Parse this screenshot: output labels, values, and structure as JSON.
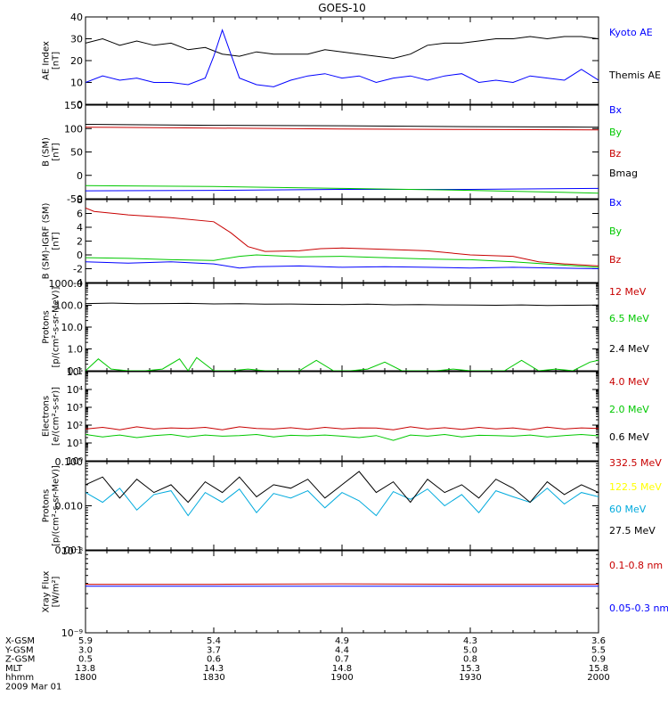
{
  "title": "GOES-10",
  "chart_data": [
    {
      "type": "line",
      "panel": "ae-index",
      "ylabel": "AE Index [nT]",
      "ylabel_lines": [
        "AE Index",
        "[nT]"
      ],
      "ylim": [
        0,
        40
      ],
      "yticks": [
        0,
        10,
        20,
        30,
        40
      ],
      "yscale": "linear",
      "xlim": [
        0,
        120
      ],
      "series": [
        {
          "name": "Kyoto AE",
          "color": "#000000",
          "x": [
            0,
            4,
            8,
            12,
            16,
            20,
            24,
            28,
            32,
            36,
            40,
            44,
            48,
            52,
            56,
            60,
            64,
            68,
            72,
            76,
            80,
            84,
            88,
            92,
            96,
            100,
            104,
            108,
            112,
            116,
            120
          ],
          "y": [
            28,
            30,
            27,
            29,
            27,
            28,
            25,
            26,
            23,
            22,
            24,
            23,
            23,
            23,
            25,
            24,
            23,
            22,
            21,
            23,
            27,
            28,
            28,
            29,
            30,
            30,
            31,
            30,
            31,
            31,
            30
          ]
        },
        {
          "name": "Themis AE",
          "color": "#0000ff",
          "x": [
            0,
            4,
            8,
            12,
            16,
            20,
            24,
            28,
            30,
            32,
            34,
            36,
            40,
            44,
            48,
            52,
            56,
            60,
            64,
            68,
            72,
            76,
            80,
            84,
            88,
            92,
            96,
            100,
            104,
            108,
            112,
            116,
            120
          ],
          "y": [
            10,
            13,
            11,
            12,
            10,
            10,
            9,
            12,
            22,
            34,
            23,
            12,
            9,
            8,
            11,
            13,
            14,
            12,
            13,
            10,
            12,
            13,
            11,
            13,
            14,
            10,
            11,
            10,
            13,
            12,
            11,
            16,
            11
          ]
        }
      ]
    },
    {
      "type": "line",
      "panel": "b-sm",
      "ylabel": "B (SM) [nT]",
      "ylabel_lines": [
        "B (SM)",
        "[nT]"
      ],
      "ylim": [
        -50,
        150
      ],
      "yticks": [
        -50,
        0,
        50,
        100,
        150
      ],
      "yscale": "linear",
      "xlim": [
        0,
        120
      ],
      "series": [
        {
          "name": "Bx",
          "color": "#0000ff",
          "x": [
            0,
            30,
            60,
            90,
            120
          ],
          "y": [
            -33,
            -32,
            -30,
            -30,
            -28
          ]
        },
        {
          "name": "By",
          "color": "#00c800",
          "x": [
            0,
            30,
            60,
            90,
            120
          ],
          "y": [
            -22,
            -24,
            -28,
            -32,
            -38
          ]
        },
        {
          "name": "Bz",
          "color": "#c80000",
          "x": [
            0,
            30,
            60,
            90,
            120
          ],
          "y": [
            103,
            101,
            99,
            98,
            97
          ]
        },
        {
          "name": "Bmag",
          "color": "#000000",
          "x": [
            0,
            30,
            60,
            90,
            120
          ],
          "y": [
            109,
            107,
            106,
            104,
            103
          ]
        }
      ]
    },
    {
      "type": "line",
      "panel": "b-minus-igrf",
      "ylabel": "B (SM)-IGRF (SM) [nT]",
      "ylabel_lines": [
        "B (SM)-IGRF (SM)",
        "[nT]"
      ],
      "ylim": [
        -4,
        8
      ],
      "yticks": [
        -4,
        -2,
        0,
        2,
        4,
        6,
        8
      ],
      "yscale": "linear",
      "xlim": [
        0,
        120
      ],
      "series": [
        {
          "name": "Bx",
          "color": "#0000ff",
          "x": [
            0,
            10,
            20,
            30,
            36,
            40,
            50,
            60,
            70,
            80,
            90,
            100,
            110,
            120
          ],
          "y": [
            -1.0,
            -1.2,
            -1.0,
            -1.3,
            -1.9,
            -1.7,
            -1.6,
            -1.8,
            -1.7,
            -1.8,
            -1.9,
            -1.8,
            -1.9,
            -2.0
          ]
        },
        {
          "name": "By",
          "color": "#00c800",
          "x": [
            0,
            10,
            20,
            30,
            36,
            40,
            50,
            60,
            70,
            80,
            90,
            100,
            110,
            120
          ],
          "y": [
            -0.4,
            -0.5,
            -0.7,
            -0.8,
            -0.2,
            0.0,
            -0.3,
            -0.2,
            -0.4,
            -0.6,
            -0.7,
            -1.0,
            -1.4,
            -1.8
          ]
        },
        {
          "name": "Bz",
          "color": "#c80000",
          "x": [
            0,
            2,
            10,
            20,
            30,
            34,
            38,
            42,
            50,
            55,
            60,
            70,
            80,
            90,
            100,
            106,
            112,
            120
          ],
          "y": [
            6.8,
            6.3,
            5.8,
            5.4,
            4.8,
            3.2,
            1.2,
            0.5,
            0.6,
            0.9,
            1.0,
            0.8,
            0.6,
            0.0,
            -0.2,
            -1.0,
            -1.3,
            -1.6
          ]
        }
      ]
    },
    {
      "type": "line",
      "panel": "protons-low",
      "ylabel": "Protons [p/(cm2-s-sr-MeV)]",
      "ylabel_lines": [
        "Protons",
        "[p/(cm²-s-sr-MeV)]"
      ],
      "ylim": [
        0.1,
        1000
      ],
      "yticks": [
        0.1,
        1.0,
        10.0,
        100.0,
        1000.0
      ],
      "ytick_labels": [
        "0.1",
        "1.0",
        "10.0",
        "100.0",
        "1000.0"
      ],
      "yscale": "log",
      "xlim": [
        0,
        120
      ],
      "series": [
        {
          "name": "12 MeV",
          "color": "#c80000",
          "x": [],
          "y": []
        },
        {
          "name": "6.5 MeV",
          "color": "#00c800",
          "x": [
            0,
            3,
            6,
            10,
            14,
            18,
            22,
            24,
            26,
            30,
            34,
            38,
            42,
            46,
            50,
            54,
            58,
            62,
            66,
            70,
            74,
            78,
            82,
            86,
            90,
            94,
            98,
            102,
            106,
            110,
            114,
            118,
            120
          ],
          "y": [
            0.1,
            0.35,
            0.12,
            0.1,
            0.1,
            0.12,
            0.35,
            0.1,
            0.4,
            0.1,
            0.1,
            0.12,
            0.1,
            0.1,
            0.1,
            0.3,
            0.1,
            0.1,
            0.12,
            0.25,
            0.1,
            0.1,
            0.1,
            0.12,
            0.1,
            0.1,
            0.1,
            0.3,
            0.1,
            0.12,
            0.1,
            0.25,
            0.3
          ]
        },
        {
          "name": "2.4 MeV",
          "color": "#000000",
          "x": [
            0,
            6,
            12,
            18,
            24,
            30,
            36,
            42,
            48,
            54,
            60,
            66,
            72,
            78,
            84,
            90,
            96,
            102,
            108,
            114,
            120
          ],
          "y": [
            120,
            125,
            118,
            120,
            122,
            115,
            118,
            112,
            114,
            110,
            108,
            112,
            105,
            108,
            104,
            102,
            100,
            104,
            98,
            100,
            102
          ]
        }
      ]
    },
    {
      "type": "line",
      "panel": "electrons",
      "ylabel": "Electrons [e/(cm2-s-sr)]",
      "ylabel_lines": [
        "Electrons",
        "[e/(cm²-s-sr)]"
      ],
      "ylim": [
        1,
        100000
      ],
      "yticks": [
        1,
        10,
        100,
        1000,
        10000,
        100000
      ],
      "ytick_labels": [
        "10⁰",
        "10¹",
        "10²",
        "10³",
        "10⁴",
        "10⁵"
      ],
      "yscale": "log",
      "xlim": [
        0,
        120
      ],
      "series": [
        {
          "name": "4.0 MeV",
          "color": "#c80000",
          "x": [
            0,
            4,
            8,
            12,
            16,
            20,
            24,
            28,
            32,
            36,
            40,
            44,
            48,
            52,
            56,
            60,
            64,
            68,
            72,
            76,
            80,
            84,
            88,
            92,
            96,
            100,
            104,
            108,
            112,
            116,
            120
          ],
          "y": [
            60,
            75,
            55,
            80,
            60,
            70,
            65,
            75,
            55,
            80,
            65,
            60,
            72,
            58,
            75,
            62,
            70,
            68,
            55,
            80,
            60,
            72,
            58,
            75,
            62,
            70,
            55,
            78,
            60,
            70,
            65
          ]
        },
        {
          "name": "2.0 MeV",
          "color": "#00c800",
          "x": [
            0,
            4,
            8,
            12,
            16,
            20,
            24,
            28,
            32,
            36,
            40,
            44,
            48,
            52,
            56,
            60,
            64,
            68,
            72,
            76,
            80,
            84,
            88,
            92,
            96,
            100,
            104,
            108,
            112,
            116,
            120
          ],
          "y": [
            30,
            22,
            28,
            20,
            26,
            30,
            22,
            28,
            24,
            26,
            30,
            22,
            27,
            25,
            28,
            24,
            20,
            26,
            14,
            28,
            24,
            30,
            22,
            27,
            26,
            24,
            28,
            22,
            26,
            30,
            25
          ]
        },
        {
          "name": "0.6 MeV",
          "color": "#000000",
          "x": [
            0,
            40,
            80,
            120
          ],
          "y": [
            110000,
            105000,
            102000,
            100000
          ]
        }
      ]
    },
    {
      "type": "line",
      "panel": "protons-high",
      "ylabel": "Protons [p/(cm2-s-sr-MeV)]",
      "ylabel_lines": [
        "Protons",
        "[p/(cm²-s-sr-MeV)]"
      ],
      "ylim": [
        0.001,
        0.1
      ],
      "yticks": [
        0.001,
        0.01,
        0.1
      ],
      "ytick_labels": [
        "0.001",
        "0.010",
        "0.100"
      ],
      "yscale": "log",
      "xlim": [
        0,
        120
      ],
      "series": [
        {
          "name": "332.5 MeV",
          "color": "#c80000",
          "x": [],
          "y": []
        },
        {
          "name": "122.5 MeV",
          "color": "#ffff00",
          "x": [],
          "y": []
        },
        {
          "name": "60 MeV",
          "color": "#00aadd",
          "x": [
            0,
            4,
            8,
            12,
            16,
            20,
            24,
            28,
            32,
            36,
            40,
            44,
            48,
            52,
            56,
            60,
            64,
            68,
            72,
            76,
            80,
            84,
            88,
            92,
            96,
            100,
            104,
            108,
            112,
            116,
            120
          ],
          "y": [
            0.02,
            0.012,
            0.025,
            0.008,
            0.018,
            0.022,
            0.006,
            0.02,
            0.012,
            0.024,
            0.007,
            0.019,
            0.015,
            0.022,
            0.009,
            0.02,
            0.013,
            0.006,
            0.021,
            0.014,
            0.024,
            0.01,
            0.018,
            0.007,
            0.022,
            0.016,
            0.012,
            0.025,
            0.011,
            0.02,
            0.016
          ]
        },
        {
          "name": "27.5 MeV",
          "color": "#000000",
          "x": [
            0,
            4,
            8,
            12,
            16,
            20,
            24,
            28,
            32,
            36,
            40,
            44,
            48,
            52,
            56,
            60,
            64,
            68,
            72,
            76,
            80,
            84,
            88,
            92,
            96,
            100,
            104,
            108,
            112,
            116,
            120
          ],
          "y": [
            0.03,
            0.045,
            0.015,
            0.04,
            0.02,
            0.03,
            0.012,
            0.035,
            0.02,
            0.045,
            0.016,
            0.03,
            0.025,
            0.04,
            0.015,
            0.03,
            0.06,
            0.02,
            0.035,
            0.012,
            0.04,
            0.02,
            0.03,
            0.015,
            0.04,
            0.025,
            0.012,
            0.035,
            0.018,
            0.03,
            0.02
          ]
        }
      ]
    },
    {
      "type": "line",
      "panel": "xray-flux",
      "ylabel": "Xray Flux [W/m2]",
      "ylabel_lines": [
        "Xray Flux",
        "[W/m²]"
      ],
      "ylim": [
        1e-09,
        1e-08
      ],
      "yticks": [
        1e-09,
        1e-08
      ],
      "ytick_labels": [
        "10⁻⁹",
        "10⁻⁸"
      ],
      "yscale": "log",
      "xlim": [
        0,
        120
      ],
      "series": [
        {
          "name": "0.1-0.8 nm",
          "color": "#c80000",
          "x": [
            0,
            30,
            60,
            90,
            120
          ],
          "y": [
            3.9e-09,
            3.9e-09,
            3.95e-09,
            3.9e-09,
            3.9e-09
          ]
        },
        {
          "name": "0.05-0.3 nm",
          "color": "#0000ff",
          "x": [
            0,
            30,
            60,
            90,
            120
          ],
          "y": [
            3.7e-09,
            3.7e-09,
            3.7e-09,
            3.7e-09,
            3.7e-09
          ]
        }
      ]
    }
  ],
  "x_axis": {
    "xlim": [
      0,
      120
    ],
    "tick_positions": [
      0,
      30,
      60,
      90,
      120
    ],
    "rows": [
      {
        "label": "X-GSM",
        "values": [
          "5.9",
          "5.4",
          "4.9",
          "4.3",
          "3.6"
        ]
      },
      {
        "label": "Y-GSM",
        "values": [
          "3.0",
          "3.7",
          "4.4",
          "5.0",
          "5.5"
        ]
      },
      {
        "label": "Z-GSM",
        "values": [
          "0.5",
          "0.6",
          "0.7",
          "0.8",
          "0.9"
        ]
      },
      {
        "label": "MLT",
        "values": [
          "13.8",
          "14.3",
          "14.8",
          "15.3",
          "15.8"
        ]
      },
      {
        "label": "hhmm",
        "values": [
          "1800",
          "1830",
          "1900",
          "1930",
          "2000"
        ]
      }
    ],
    "date": "2009 Mar 01"
  }
}
